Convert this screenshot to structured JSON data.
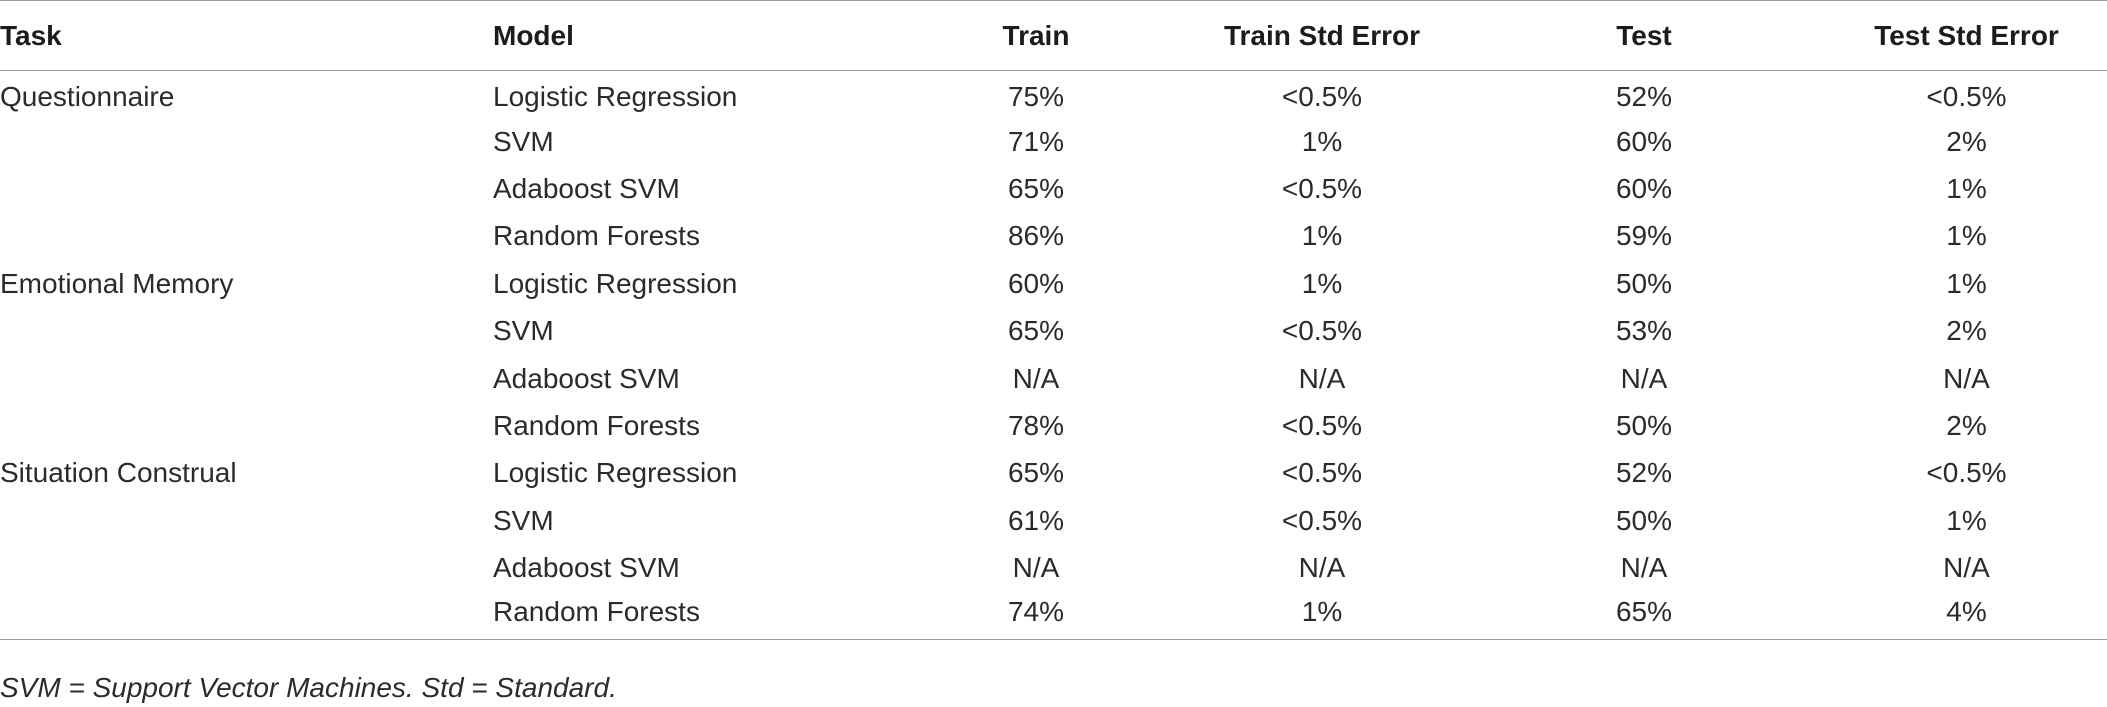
{
  "table": {
    "headers": [
      "Task",
      "Model",
      "Train",
      "Train Std Error",
      "Test",
      "Test Std Error"
    ],
    "rows": [
      [
        "Questionnaire",
        "Logistic Regression",
        "75%",
        "<0.5%",
        "52%",
        "<0.5%"
      ],
      [
        "",
        "SVM",
        "71%",
        "1%",
        "60%",
        "2%"
      ],
      [
        "",
        "Adaboost SVM",
        "65%",
        "<0.5%",
        "60%",
        "1%"
      ],
      [
        "",
        "Random Forests",
        "86%",
        "1%",
        "59%",
        "1%"
      ],
      [
        "Emotional Memory",
        "Logistic Regression",
        "60%",
        "1%",
        "50%",
        "1%"
      ],
      [
        "",
        "SVM",
        "65%",
        "<0.5%",
        "53%",
        "2%"
      ],
      [
        "",
        "Adaboost SVM",
        "N/A",
        "N/A",
        "N/A",
        "N/A"
      ],
      [
        "",
        "Random Forests",
        "78%",
        "<0.5%",
        "50%",
        "2%"
      ],
      [
        "Situation Construal",
        "Logistic Regression",
        "65%",
        "<0.5%",
        "52%",
        "<0.5%"
      ],
      [
        "",
        "SVM",
        "61%",
        "<0.5%",
        "50%",
        "1%"
      ],
      [
        "",
        "Adaboost SVM",
        "N/A",
        "N/A",
        "N/A",
        "N/A"
      ],
      [
        "",
        "Random Forests",
        "74%",
        "1%",
        "65%",
        "4%"
      ]
    ]
  },
  "footnote": "SVM = Support Vector Machines. Std = Standard."
}
